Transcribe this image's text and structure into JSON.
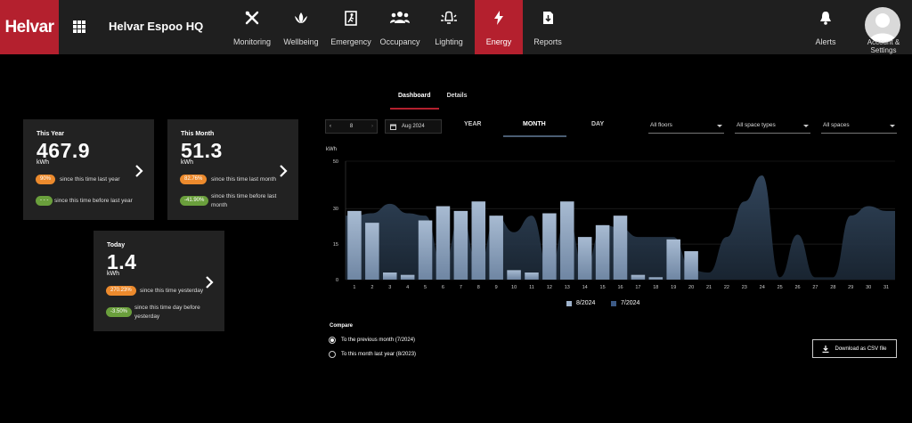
{
  "header": {
    "brand": "Helvar",
    "site": "Helvar Espoo HQ",
    "nav": [
      {
        "label": "Monitoring",
        "icon": "tools-icon"
      },
      {
        "label": "Wellbeing",
        "icon": "lotus-icon"
      },
      {
        "label": "Emergency",
        "icon": "emergency-exit-icon"
      },
      {
        "label": "Occupancy",
        "icon": "people-icon"
      },
      {
        "label": "Lighting",
        "icon": "light-icon"
      },
      {
        "label": "Energy",
        "icon": "lightning-icon",
        "active": true
      },
      {
        "label": "Reports",
        "icon": "report-icon"
      }
    ],
    "alerts": "Alerts",
    "account": "Account & Settings"
  },
  "tabs": {
    "dashboard": "Dashboard",
    "details": "Details"
  },
  "cards": {
    "year": {
      "title": "This Year",
      "value": "467.9",
      "unit": "kWh",
      "badge1": "90%",
      "text1": "since this time last year",
      "badge2": "- - -",
      "text2": "since this time before last year"
    },
    "month": {
      "title": "This Month",
      "value": "51.3",
      "unit": "kWh",
      "badge1": "82.76%",
      "text1": "since this time last month",
      "badge2": "-41.90%",
      "text2": "since this time before last month"
    },
    "today": {
      "title": "Today",
      "value": "1.4",
      "unit": "kWh",
      "badge1": "270.23%",
      "text1": "since this time yesterday",
      "badge2": "-3.50%",
      "text2": "since this time day before yesterday"
    }
  },
  "controls": {
    "stepper_value": "8",
    "date": "Aug 2024",
    "periods": [
      "YEAR",
      "MONTH",
      "DAY"
    ],
    "active_period": "MONTH",
    "floors": "All floors",
    "space_types": "All space types",
    "spaces": "All spaces"
  },
  "compare": {
    "title": "Compare",
    "option1": "To the previous month (7/2024)",
    "option2": "To this month last year (8/2023)",
    "selected": "option1"
  },
  "download": "Download as CSV file",
  "colors": {
    "accent": "#b4202e",
    "bar": "#9fb3cc",
    "area": "#2b3d51",
    "card": "#222222"
  },
  "chart_data": {
    "type": "bar",
    "ylabel": "kWh",
    "ylim": [
      0,
      50
    ],
    "yticks": [
      "0",
      "15",
      "30",
      "50"
    ],
    "categories": [
      "1",
      "2",
      "3",
      "4",
      "5",
      "6",
      "7",
      "8",
      "9",
      "10",
      "11",
      "12",
      "13",
      "14",
      "15",
      "16",
      "17",
      "18",
      "19",
      "20",
      "21",
      "22",
      "23",
      "24",
      "25",
      "26",
      "27",
      "28",
      "29",
      "30",
      "31"
    ],
    "series": [
      {
        "name": "8/2024",
        "type": "bar",
        "values": [
          29,
          24,
          3,
          2,
          25,
          31,
          29,
          33,
          27,
          4,
          3,
          28,
          33,
          18,
          23,
          27,
          2,
          1,
          17,
          12,
          null,
          null,
          null,
          null,
          null,
          null,
          null,
          null,
          null,
          null,
          null
        ]
      },
      {
        "name": "7/2024",
        "type": "area",
        "values": [
          27,
          28,
          32,
          28,
          27,
          5,
          28,
          5,
          27,
          20,
          27,
          4,
          27,
          4,
          23,
          22,
          18,
          18,
          18,
          4,
          3,
          18,
          33,
          44,
          1,
          19,
          1,
          1,
          27,
          31,
          29
        ]
      }
    ]
  }
}
